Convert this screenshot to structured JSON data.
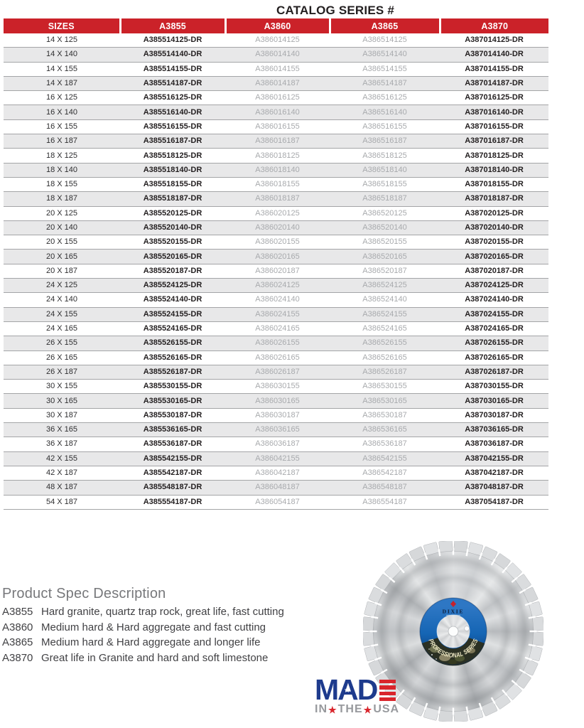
{
  "page": {
    "title": "CATALOG SERIES #",
    "background": "#ffffff"
  },
  "catalog_table": {
    "columns": [
      "SIZES",
      "A3855",
      "A3860",
      "A3865",
      "A3870"
    ],
    "rows": [
      [
        "14 X 125",
        "A385514125-DR",
        "A386014125",
        "A386514125",
        "A387014125-DR"
      ],
      [
        "14 X 140",
        "A385514140-DR",
        "A386014140",
        "A386514140",
        "A387014140-DR"
      ],
      [
        "14 X 155",
        "A385514155-DR",
        "A386014155",
        "A386514155",
        "A387014155-DR"
      ],
      [
        "14 X 187",
        "A385514187-DR",
        "A386014187",
        "A386514187",
        "A387014187-DR"
      ],
      [
        "16 X 125",
        "A385516125-DR",
        "A386016125",
        "A386516125",
        "A387016125-DR"
      ],
      [
        "16 X 140",
        "A385516140-DR",
        "A386016140",
        "A386516140",
        "A387016140-DR"
      ],
      [
        "16 X 155",
        "A385516155-DR",
        "A386016155",
        "A386516155",
        "A387016155-DR"
      ],
      [
        "16 X 187",
        "A385516187-DR",
        "A386016187",
        "A386516187",
        "A387016187-DR"
      ],
      [
        "18 X 125",
        "A385518125-DR",
        "A386018125",
        "A386518125",
        "A387018125-DR"
      ],
      [
        "18 X 140",
        "A385518140-DR",
        "A386018140",
        "A386518140",
        "A387018140-DR"
      ],
      [
        "18 X 155",
        "A385518155-DR",
        "A386018155",
        "A386518155",
        "A387018155-DR"
      ],
      [
        "18 X 187",
        "A385518187-DR",
        "A386018187",
        "A386518187",
        "A387018187-DR"
      ],
      [
        "20 X 125",
        "A385520125-DR",
        "A386020125",
        "A386520125",
        "A387020125-DR"
      ],
      [
        "20 X 140",
        "A385520140-DR",
        "A386020140",
        "A386520140",
        "A387020140-DR"
      ],
      [
        "20 X 155",
        "A385520155-DR",
        "A386020155",
        "A386520155",
        "A387020155-DR"
      ],
      [
        "20 X 165",
        "A385520165-DR",
        "A386020165",
        "A386520165",
        "A387020165-DR"
      ],
      [
        "20 X 187",
        "A385520187-DR",
        "A386020187",
        "A386520187",
        "A387020187-DR"
      ],
      [
        "24 X 125",
        "A385524125-DR",
        "A386024125",
        "A386524125",
        "A387024125-DR"
      ],
      [
        "24 X 140",
        "A385524140-DR",
        "A386024140",
        "A386524140",
        "A387024140-DR"
      ],
      [
        "24 X 155",
        "A385524155-DR",
        "A386024155",
        "A386524155",
        "A387024155-DR"
      ],
      [
        "24 X 165",
        "A385524165-DR",
        "A386024165",
        "A386524165",
        "A387024165-DR"
      ],
      [
        "26 X 155",
        "A385526155-DR",
        "A386026155",
        "A386526155",
        "A387026155-DR"
      ],
      [
        "26 X 165",
        "A385526165-DR",
        "A386026165",
        "A386526165",
        "A387026165-DR"
      ],
      [
        "26 X 187",
        "A385526187-DR",
        "A386026187",
        "A386526187",
        "A387026187-DR"
      ],
      [
        "30 X 155",
        "A385530155-DR",
        "A386030155",
        "A386530155",
        "A387030155-DR"
      ],
      [
        "30 X 165",
        "A385530165-DR",
        "A386030165",
        "A386530165",
        "A387030165-DR"
      ],
      [
        "30 X 187",
        "A385530187-DR",
        "A386030187",
        "A386530187",
        "A387030187-DR"
      ],
      [
        "36 X 165",
        "A385536165-DR",
        "A386036165",
        "A386536165",
        "A387036165-DR"
      ],
      [
        "36 X 187",
        "A385536187-DR",
        "A386036187",
        "A386536187",
        "A387036187-DR"
      ],
      [
        "42 X 155",
        "A385542155-DR",
        "A386042155",
        "A386542155",
        "A387042155-DR"
      ],
      [
        "42 X 187",
        "A385542187-DR",
        "A386042187",
        "A386542187",
        "A387042187-DR"
      ],
      [
        "48 X 187",
        "A385548187-DR",
        "A386048187",
        "A386548187",
        "A387048187-DR"
      ],
      [
        "54 X 187",
        "A385554187-DR",
        "A386054187",
        "A386554187",
        "A387054187-DR"
      ]
    ],
    "colors": {
      "header_bg": "#cb2229",
      "header_text": "#ffffff",
      "alt_row_bg": "#e8e8e9",
      "row_border": "#a4a5a7",
      "dark_code_text": "#231f20",
      "light_code_text": "#a8aaad",
      "size_text": "#2e2e30"
    }
  },
  "product_specs": {
    "heading": "Product Spec Description",
    "items": [
      {
        "code": "A3855",
        "description": "Hard granite, quartz trap rock, great life, fast cutting"
      },
      {
        "code": "A3860",
        "description": "Medium hard & Hard aggregate and fast cutting"
      },
      {
        "code": "A3865",
        "description": "Medium hard & Hard aggregate and longer life"
      },
      {
        "code": "A3870",
        "description": "Great life in Granite and hard and soft limestone"
      }
    ]
  },
  "blade_image": {
    "brand": "DIXIE",
    "series": "PROFESSIONAL SERIES",
    "label_blue": "#1565b4",
    "diamond_color": "#c4222e"
  },
  "made_in_usa_logo": {
    "word": "MADE",
    "word_prefix": "MAD",
    "line2_words": [
      "IN",
      "THE",
      "USA"
    ],
    "blue": "#1e3b8d",
    "red": "#d9252c",
    "gray": "#97999d"
  }
}
